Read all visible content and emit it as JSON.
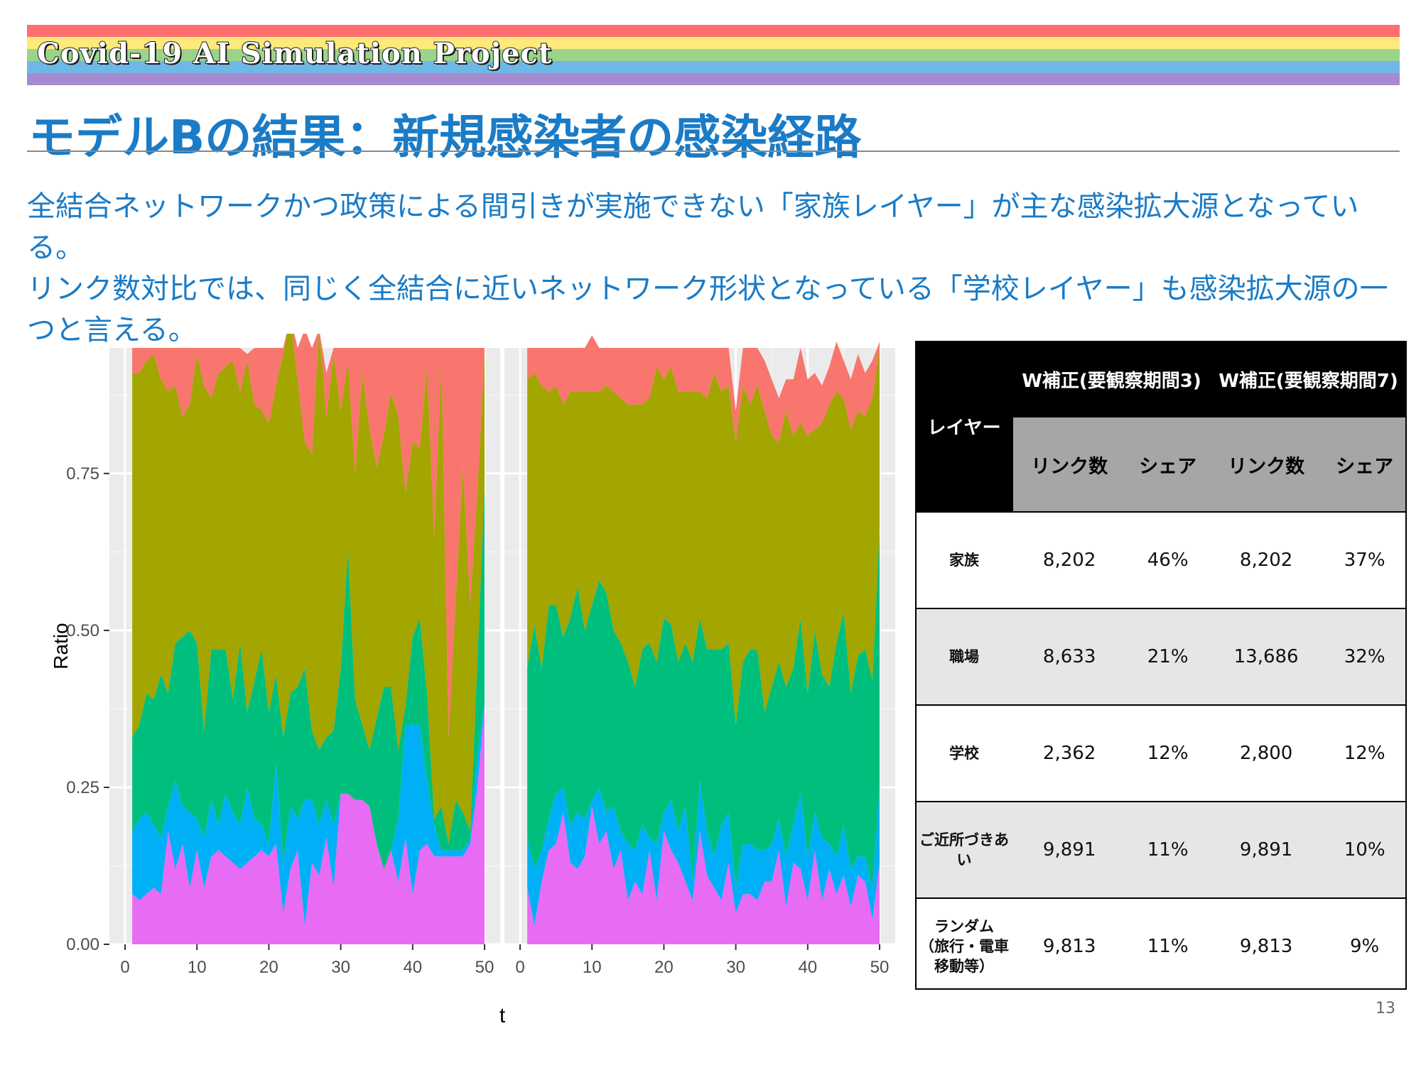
{
  "header": {
    "banner_title": "Covid-19 AI Simulation Project",
    "banner_colors": [
      "#ff6f6f",
      "#ffe97a",
      "#9ad48a",
      "#6fb7e6",
      "#a78bd0"
    ],
    "slide_title": "モデルBの結果：新規感染者の感染経路"
  },
  "lead": {
    "line1": "全結合ネットワークかつ政策による間引きが実施できない「家族レイヤー」が主な感染拡大源となっている。",
    "line2": "リンク数対比では、同じく全結合に近いネットワーク形状となっている「学校レイヤー」も感染拡大源の一つと言える。"
  },
  "chart_data": {
    "type": "area",
    "stacked": true,
    "ylabel": "Ratio",
    "xlabel": "t",
    "x_ticks": [
      "0",
      "10",
      "20",
      "30",
      "40",
      "50"
    ],
    "y_ticks": [
      "0.00",
      "0.25",
      "0.50",
      "0.75"
    ],
    "xlim": [
      0,
      50
    ],
    "ylim": [
      0,
      0.95
    ],
    "grid": true,
    "layer_colors": [
      "#e76bf3",
      "#00b0f6",
      "#00bf7d",
      "#a3a500",
      "#f8766d"
    ],
    "panels": [
      {
        "x": [
          1,
          2,
          3,
          4,
          5,
          6,
          7,
          8,
          9,
          10,
          11,
          12,
          13,
          14,
          15,
          16,
          17,
          18,
          19,
          20,
          21,
          22,
          23,
          24,
          25,
          26,
          27,
          28,
          29,
          30,
          31,
          32,
          33,
          34,
          35,
          36,
          37,
          38,
          39,
          40,
          41,
          42,
          43,
          44,
          45,
          46,
          47,
          48,
          49,
          50
        ],
        "series": [
          {
            "values": [
              0.08,
              0.07,
              0.08,
              0.09,
              0.08,
              0.18,
              0.12,
              0.16,
              0.09,
              0.15,
              0.09,
              0.14,
              0.15,
              0.14,
              0.13,
              0.12,
              0.13,
              0.14,
              0.15,
              0.14,
              0.16,
              0.05,
              0.12,
              0.15,
              0.03,
              0.13,
              0.11,
              0.17,
              0.09,
              0.24,
              0.24,
              0.23,
              0.23,
              0.22,
              0.16,
              0.12,
              0.15,
              0.1,
              0.17,
              0.08,
              0.15,
              0.16,
              0.14,
              0.14,
              0.14,
              0.14,
              0.14,
              0.16,
              0.25,
              0.38
            ]
          },
          {
            "values": [
              0.1,
              0.13,
              0.13,
              0.1,
              0.09,
              0.04,
              0.14,
              0.06,
              0.12,
              0.05,
              0.08,
              0.09,
              0.04,
              0.1,
              0.08,
              0.07,
              0.12,
              0.06,
              0.04,
              0.02,
              0.13,
              0.08,
              0.1,
              0.05,
              0.2,
              0.1,
              0.08,
              0.06,
              0.1,
              0.0,
              0.0,
              0.0,
              0.0,
              0.0,
              0.0,
              0.0,
              0.0,
              0.1,
              0.18,
              0.27,
              0.2,
              0.1,
              0.05,
              0.01,
              0.01,
              0.01,
              0.01,
              0.01,
              0.05,
              0.01
            ]
          },
          {
            "values": [
              0.15,
              0.15,
              0.19,
              0.2,
              0.26,
              0.18,
              0.22,
              0.27,
              0.29,
              0.28,
              0.17,
              0.24,
              0.28,
              0.23,
              0.18,
              0.29,
              0.12,
              0.22,
              0.28,
              0.21,
              0.14,
              0.2,
              0.18,
              0.21,
              0.21,
              0.11,
              0.12,
              0.1,
              0.15,
              0.2,
              0.39,
              0.16,
              0.12,
              0.09,
              0.2,
              0.29,
              0.26,
              0.11,
              0.03,
              0.14,
              0.17,
              0.14,
              0.01,
              0.07,
              0.01,
              0.08,
              0.06,
              0.01,
              0.15,
              0.34
            ]
          },
          {
            "values": [
              0.58,
              0.56,
              0.53,
              0.55,
              0.47,
              0.48,
              0.41,
              0.35,
              0.36,
              0.46,
              0.55,
              0.4,
              0.44,
              0.45,
              0.54,
              0.4,
              0.56,
              0.44,
              0.38,
              0.46,
              0.46,
              0.61,
              0.6,
              0.49,
              0.36,
              0.44,
              0.67,
              0.51,
              0.6,
              0.41,
              0.3,
              0.36,
              0.56,
              0.51,
              0.4,
              0.4,
              0.47,
              0.53,
              0.34,
              0.31,
              0.27,
              0.52,
              0.45,
              0.71,
              0.17,
              0.32,
              0.55,
              0.36,
              0.27,
              0.21
            ]
          },
          {
            "values": [
              0.04,
              0.04,
              0.02,
              0.01,
              0.05,
              0.07,
              0.06,
              0.11,
              0.09,
              0.01,
              0.06,
              0.08,
              0.04,
              0.03,
              0.02,
              0.07,
              0.01,
              0.09,
              0.1,
              0.12,
              0.06,
              0.01,
              0.0,
              0.05,
              0.18,
              0.17,
              0.0,
              0.07,
              0.01,
              0.1,
              0.02,
              0.2,
              0.04,
              0.13,
              0.19,
              0.14,
              0.07,
              0.11,
              0.23,
              0.15,
              0.16,
              0.03,
              0.3,
              0.02,
              0.62,
              0.4,
              0.19,
              0.41,
              0.23,
              0.01
            ]
          }
        ]
      },
      {
        "x": [
          1,
          2,
          3,
          4,
          5,
          6,
          7,
          8,
          9,
          10,
          11,
          12,
          13,
          14,
          15,
          16,
          17,
          18,
          19,
          20,
          21,
          22,
          23,
          24,
          25,
          26,
          27,
          28,
          29,
          30,
          31,
          32,
          33,
          34,
          35,
          36,
          37,
          38,
          39,
          40,
          41,
          42,
          43,
          44,
          45,
          46,
          47,
          48,
          49,
          50
        ],
        "series": [
          {
            "values": [
              0.09,
              0.03,
              0.1,
              0.15,
              0.16,
              0.21,
              0.13,
              0.12,
              0.14,
              0.22,
              0.16,
              0.18,
              0.12,
              0.15,
              0.07,
              0.1,
              0.08,
              0.15,
              0.07,
              0.18,
              0.15,
              0.13,
              0.1,
              0.07,
              0.18,
              0.11,
              0.09,
              0.07,
              0.13,
              0.05,
              0.08,
              0.08,
              0.07,
              0.1,
              0.1,
              0.15,
              0.06,
              0.13,
              0.12,
              0.07,
              0.15,
              0.07,
              0.12,
              0.08,
              0.11,
              0.06,
              0.11,
              0.1,
              0.04,
              0.13
            ]
          },
          {
            "values": [
              0.08,
              0.09,
              0.05,
              0.05,
              0.08,
              0.04,
              0.06,
              0.09,
              0.06,
              0.01,
              0.09,
              0.03,
              0.1,
              0.03,
              0.09,
              0.05,
              0.11,
              0.02,
              0.09,
              0.03,
              0.08,
              0.05,
              0.12,
              0.03,
              0.08,
              0.07,
              0.05,
              0.12,
              0.08,
              0.04,
              0.08,
              0.08,
              0.08,
              0.05,
              0.06,
              0.05,
              0.08,
              0.06,
              0.12,
              0.07,
              0.06,
              0.1,
              0.04,
              0.06,
              0.08,
              0.06,
              0.03,
              0.04,
              0.05,
              0.12
            ]
          },
          {
            "values": [
              0.27,
              0.39,
              0.29,
              0.34,
              0.3,
              0.24,
              0.33,
              0.36,
              0.3,
              0.31,
              0.33,
              0.35,
              0.28,
              0.3,
              0.29,
              0.26,
              0.28,
              0.31,
              0.29,
              0.31,
              0.28,
              0.27,
              0.26,
              0.35,
              0.26,
              0.29,
              0.33,
              0.28,
              0.27,
              0.26,
              0.29,
              0.31,
              0.32,
              0.22,
              0.25,
              0.25,
              0.27,
              0.25,
              0.28,
              0.26,
              0.29,
              0.26,
              0.25,
              0.34,
              0.34,
              0.28,
              0.32,
              0.33,
              0.33,
              0.41
            ]
          },
          {
            "values": [
              0.46,
              0.4,
              0.45,
              0.34,
              0.35,
              0.37,
              0.36,
              0.31,
              0.38,
              0.34,
              0.3,
              0.33,
              0.38,
              0.39,
              0.41,
              0.45,
              0.39,
              0.39,
              0.47,
              0.38,
              0.41,
              0.43,
              0.4,
              0.43,
              0.36,
              0.4,
              0.44,
              0.41,
              0.41,
              0.45,
              0.44,
              0.39,
              0.42,
              0.48,
              0.4,
              0.35,
              0.44,
              0.37,
              0.31,
              0.41,
              0.32,
              0.4,
              0.45,
              0.4,
              0.34,
              0.42,
              0.39,
              0.37,
              0.45,
              0.29
            ]
          },
          {
            "values": [
              0.05,
              0.04,
              0.06,
              0.07,
              0.06,
              0.09,
              0.07,
              0.07,
              0.07,
              0.09,
              0.07,
              0.06,
              0.07,
              0.08,
              0.09,
              0.09,
              0.09,
              0.08,
              0.03,
              0.05,
              0.03,
              0.07,
              0.07,
              0.07,
              0.07,
              0.08,
              0.04,
              0.07,
              0.06,
              0.05,
              0.06,
              0.09,
              0.06,
              0.08,
              0.09,
              0.07,
              0.05,
              0.09,
              0.12,
              0.09,
              0.09,
              0.06,
              0.06,
              0.08,
              0.06,
              0.08,
              0.09,
              0.07,
              0.06,
              0.01
            ]
          }
        ]
      }
    ]
  },
  "table": {
    "layer_header": "レイヤー",
    "group_headers": [
      "W補正(要観察期間3)",
      "W補正(要観察期間7)"
    ],
    "sub_headers": [
      "リンク数",
      "シェア",
      "リンク数",
      "シェア"
    ],
    "rows": [
      {
        "layer": "家族",
        "v": [
          "8,202",
          "46%",
          "8,202",
          "37%"
        ]
      },
      {
        "layer": "職場",
        "v": [
          "8,633",
          "21%",
          "13,686",
          "32%"
        ]
      },
      {
        "layer": "学校",
        "v": [
          "2,362",
          "12%",
          "2,800",
          "12%"
        ]
      },
      {
        "layer": "ご近所づきあい",
        "v": [
          "9,891",
          "11%",
          "9,891",
          "10%"
        ]
      },
      {
        "layer": "ランダム",
        "layer_line2": "（旅行・電車",
        "layer_line3": "移動等）",
        "v": [
          "9,813",
          "11%",
          "9,813",
          "9%"
        ]
      }
    ]
  },
  "footer": {
    "page_number": "13"
  }
}
